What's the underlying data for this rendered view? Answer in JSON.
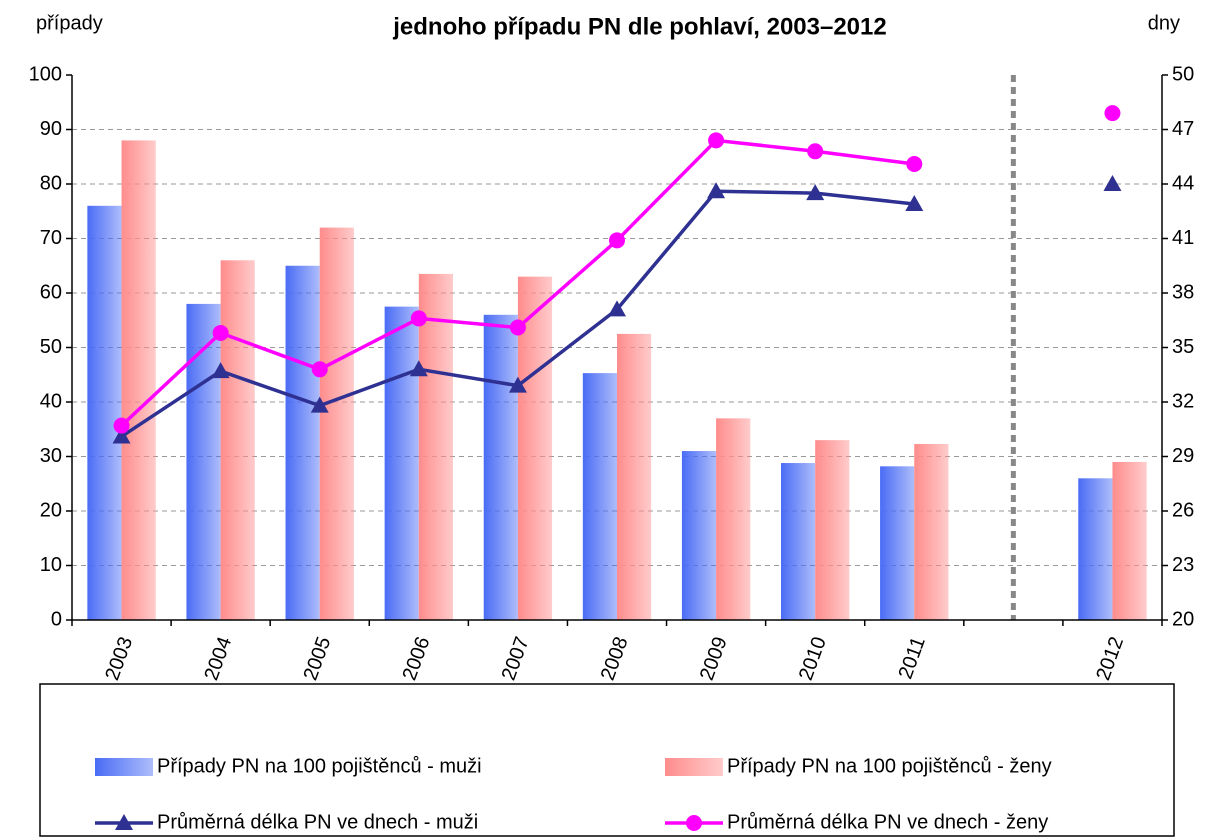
{
  "chart_data": {
    "type": "combo",
    "title": "jednoho případu PN dle pohlaví, 2003–2012",
    "y_label": "případy",
    "y2_label": "dny",
    "categories": [
      "2003",
      "2004",
      "2005",
      "2006",
      "2007",
      "2008",
      "2009",
      "2010",
      "2011",
      null,
      "2012"
    ],
    "series": [
      {
        "name": "Případy PN na 100 pojištěnců - muži",
        "type": "bar",
        "color": "#4a6cf5",
        "values": [
          76,
          58,
          65,
          57.5,
          56,
          45.3,
          31,
          28.8,
          28.2,
          null,
          26
        ]
      },
      {
        "name": "Případy PN na 100 pojištěnců - ženy",
        "type": "bar",
        "color": "#ff8c8c",
        "values": [
          88,
          66,
          72,
          63.5,
          63,
          52.5,
          37,
          33,
          32.3,
          null,
          29
        ]
      },
      {
        "name": "Průměrná délka PN ve dnech - muži",
        "type": "line",
        "marker": "triangle",
        "axis": "y2",
        "color": "#2e3192",
        "values": [
          30.1,
          33.7,
          31.8,
          33.8,
          32.9,
          37.1,
          43.6,
          43.5,
          42.9,
          null,
          44.0
        ]
      },
      {
        "name": "Průměrná délka PN ve dnech - ženy",
        "type": "line",
        "marker": "circle",
        "axis": "y2",
        "color": "#ff00ff",
        "values": [
          30.7,
          35.8,
          33.8,
          36.6,
          36.1,
          40.9,
          46.4,
          45.8,
          45.1,
          null,
          47.9
        ]
      }
    ],
    "ylim": [
      0,
      100
    ],
    "yticks": [
      0,
      10,
      20,
      30,
      40,
      50,
      60,
      70,
      80,
      90,
      100
    ],
    "y2lim": [
      20,
      50
    ],
    "y2ticks": [
      20,
      23,
      26,
      29,
      32,
      35,
      38,
      41,
      44,
      47,
      50
    ],
    "grid": true
  }
}
